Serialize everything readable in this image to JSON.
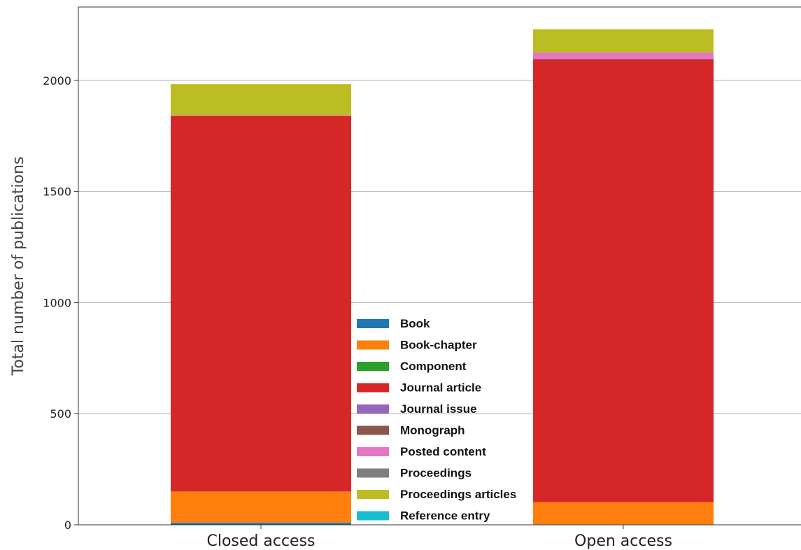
{
  "chart_data": {
    "type": "bar",
    "stacked": true,
    "categories": [
      "Closed access",
      "Open access"
    ],
    "ylabel": "Total number of publications",
    "xlabel": "",
    "ylim": [
      0,
      2330
    ],
    "yticks": [
      0,
      500,
      1000,
      1500,
      2000
    ],
    "grid": "horizontal",
    "legend_position": "center",
    "series": [
      {
        "name": "Book",
        "color": "#1f77b4",
        "values": [
          10,
          2
        ]
      },
      {
        "name": "Book-chapter",
        "color": "#ff7f0e",
        "values": [
          140,
          100
        ]
      },
      {
        "name": "Component",
        "color": "#2ca02c",
        "values": [
          0,
          0
        ]
      },
      {
        "name": "Journal article",
        "color": "#d62728",
        "values": [
          1690,
          1993
        ]
      },
      {
        "name": "Journal issue",
        "color": "#9467bd",
        "values": [
          0,
          3
        ]
      },
      {
        "name": "Monograph",
        "color": "#8c564b",
        "values": [
          0,
          0
        ]
      },
      {
        "name": "Posted content",
        "color": "#e377c2",
        "values": [
          3,
          27
        ]
      },
      {
        "name": "Proceedings",
        "color": "#7f7f7f",
        "values": [
          0,
          0
        ]
      },
      {
        "name": "Proceedings articles",
        "color": "#bcbd22",
        "values": [
          140,
          105
        ]
      },
      {
        "name": "Reference entry",
        "color": "#17becf",
        "values": [
          0,
          0
        ]
      }
    ]
  }
}
